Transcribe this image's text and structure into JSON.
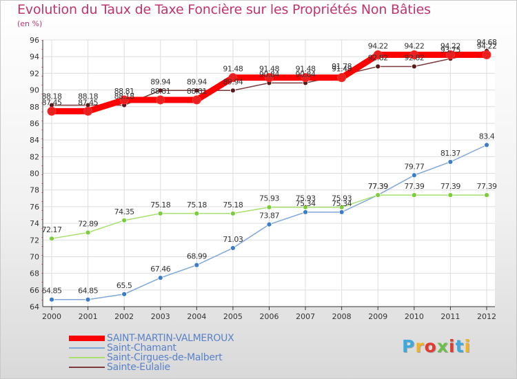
{
  "chart_data": {
    "type": "line",
    "title": "Evolution du Taux de Taxe Foncière sur les Propriétés Non Bâties",
    "ylabel": "(en %)",
    "xlabel": "",
    "ylim": [
      64,
      96
    ],
    "y_ticks": [
      "64",
      "66",
      "68",
      "70",
      "72",
      "74",
      "76",
      "78",
      "80",
      "82",
      "84",
      "86",
      "88",
      "90",
      "92",
      "94",
      "96"
    ],
    "categories": [
      "2000",
      "2001",
      "2002",
      "2003",
      "2004",
      "2005",
      "2006",
      "2007",
      "2008",
      "2009",
      "2010",
      "2011",
      "2012"
    ],
    "series": [
      {
        "name": "SAINT-MARTIN-VALMEROUX",
        "color": "#ff0000",
        "marker_color": "#e82020",
        "values": [
          87.45,
          87.45,
          88.81,
          88.81,
          88.81,
          91.48,
          91.48,
          91.48,
          91.48,
          94.22,
          94.22,
          94.22,
          94.22
        ],
        "labels": [
          "87.45",
          "87.45",
          "88.81",
          "88.81",
          "88.81",
          "91.48",
          "91.48",
          "91.48",
          "91.48",
          "94.22",
          "94.22",
          "94.22",
          "94.22"
        ]
      },
      {
        "name": "Saint-Chamant",
        "color": "#7fa8d8",
        "marker_color": "#3d7cc8",
        "values": [
          64.85,
          64.85,
          65.5,
          67.46,
          68.99,
          71.03,
          73.87,
          75.34,
          75.34,
          77.39,
          79.77,
          81.37,
          83.4
        ],
        "labels": [
          "64.85",
          "64.85",
          "65.5",
          "67.46",
          "68.99",
          "71.03",
          "73.87",
          "75.34",
          "75.34",
          "77.39",
          "79.77",
          "81.37",
          "83.4"
        ]
      },
      {
        "name": "Saint-Cirgues-de-Malbert",
        "color": "#a8e070",
        "marker_color": "#7ccc3c",
        "values": [
          72.17,
          72.89,
          74.35,
          75.18,
          75.18,
          75.18,
          75.93,
          75.93,
          75.93,
          77.39,
          77.39,
          77.39,
          77.39
        ],
        "labels": [
          "72.17",
          "72.89",
          "74.35",
          "75.18",
          "75.18",
          "75.18",
          "75.93",
          "75.93",
          "75.93",
          "77.39",
          "77.39",
          "77.39",
          "77.39"
        ]
      },
      {
        "name": "Sainte-Eulalie",
        "color": "#7a3a3a",
        "marker_color": "#5a1818",
        "values": [
          88.18,
          88.18,
          88.18,
          89.94,
          89.94,
          89.94,
          90.84,
          90.84,
          91.78,
          92.82,
          92.82,
          93.75,
          94.68
        ],
        "labels": [
          "88.18",
          "88.18",
          "88.18",
          "89.94",
          "89.94",
          "89.94",
          "90.84",
          "90.84",
          "91.78",
          "92.82",
          "92.82",
          "93.75",
          "94.68"
        ]
      }
    ],
    "legend_position": "bottom-left"
  },
  "logo": {
    "letters": [
      "P",
      "r",
      "o",
      "x",
      "i",
      "t",
      "i"
    ],
    "colors": [
      "#3fa9dd",
      "#f0b323",
      "#e23a2f",
      "#6cc04a",
      "#e23a2f",
      "#3fa9dd",
      "#f0b323"
    ]
  }
}
